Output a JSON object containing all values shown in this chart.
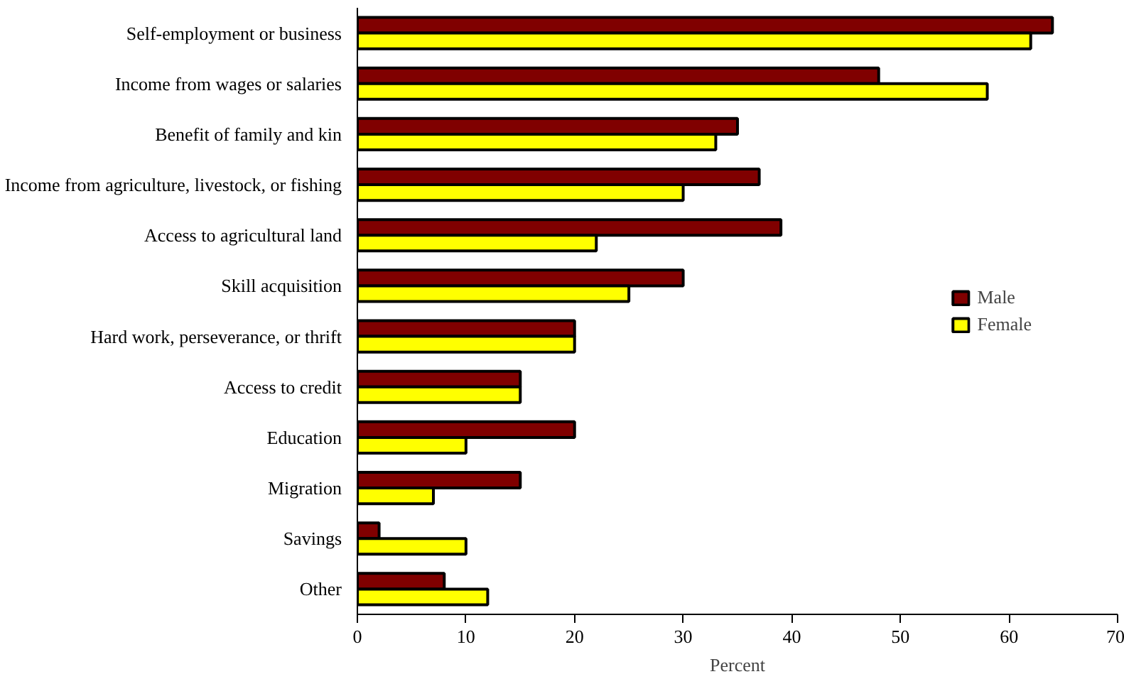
{
  "chart_data": {
    "type": "bar",
    "orientation": "horizontal",
    "xlabel": "Percent",
    "categories": [
      "Self-employment or business",
      "Income from wages or salaries",
      "Benefit of family and kin",
      "Income from agriculture, livestock, or fishing",
      "Access to agricultural land",
      "Skill acquisition",
      "Hard work, perseverance, or thrift",
      "Access to credit",
      "Education",
      "Migration",
      "Savings",
      "Other"
    ],
    "series": [
      {
        "name": "Male",
        "color": "#800000",
        "values": [
          64,
          48,
          35,
          37,
          39,
          30,
          20,
          15,
          20,
          15,
          2,
          8
        ]
      },
      {
        "name": "Female",
        "color": "#ffff00",
        "values": [
          62,
          58,
          33,
          30,
          22,
          25,
          20,
          15,
          10,
          7,
          10,
          12
        ]
      }
    ],
    "xlim": [
      0,
      70
    ],
    "xticks": [
      0,
      10,
      20,
      30,
      40,
      50,
      60,
      70
    ],
    "grid": false,
    "legend": "right"
  }
}
